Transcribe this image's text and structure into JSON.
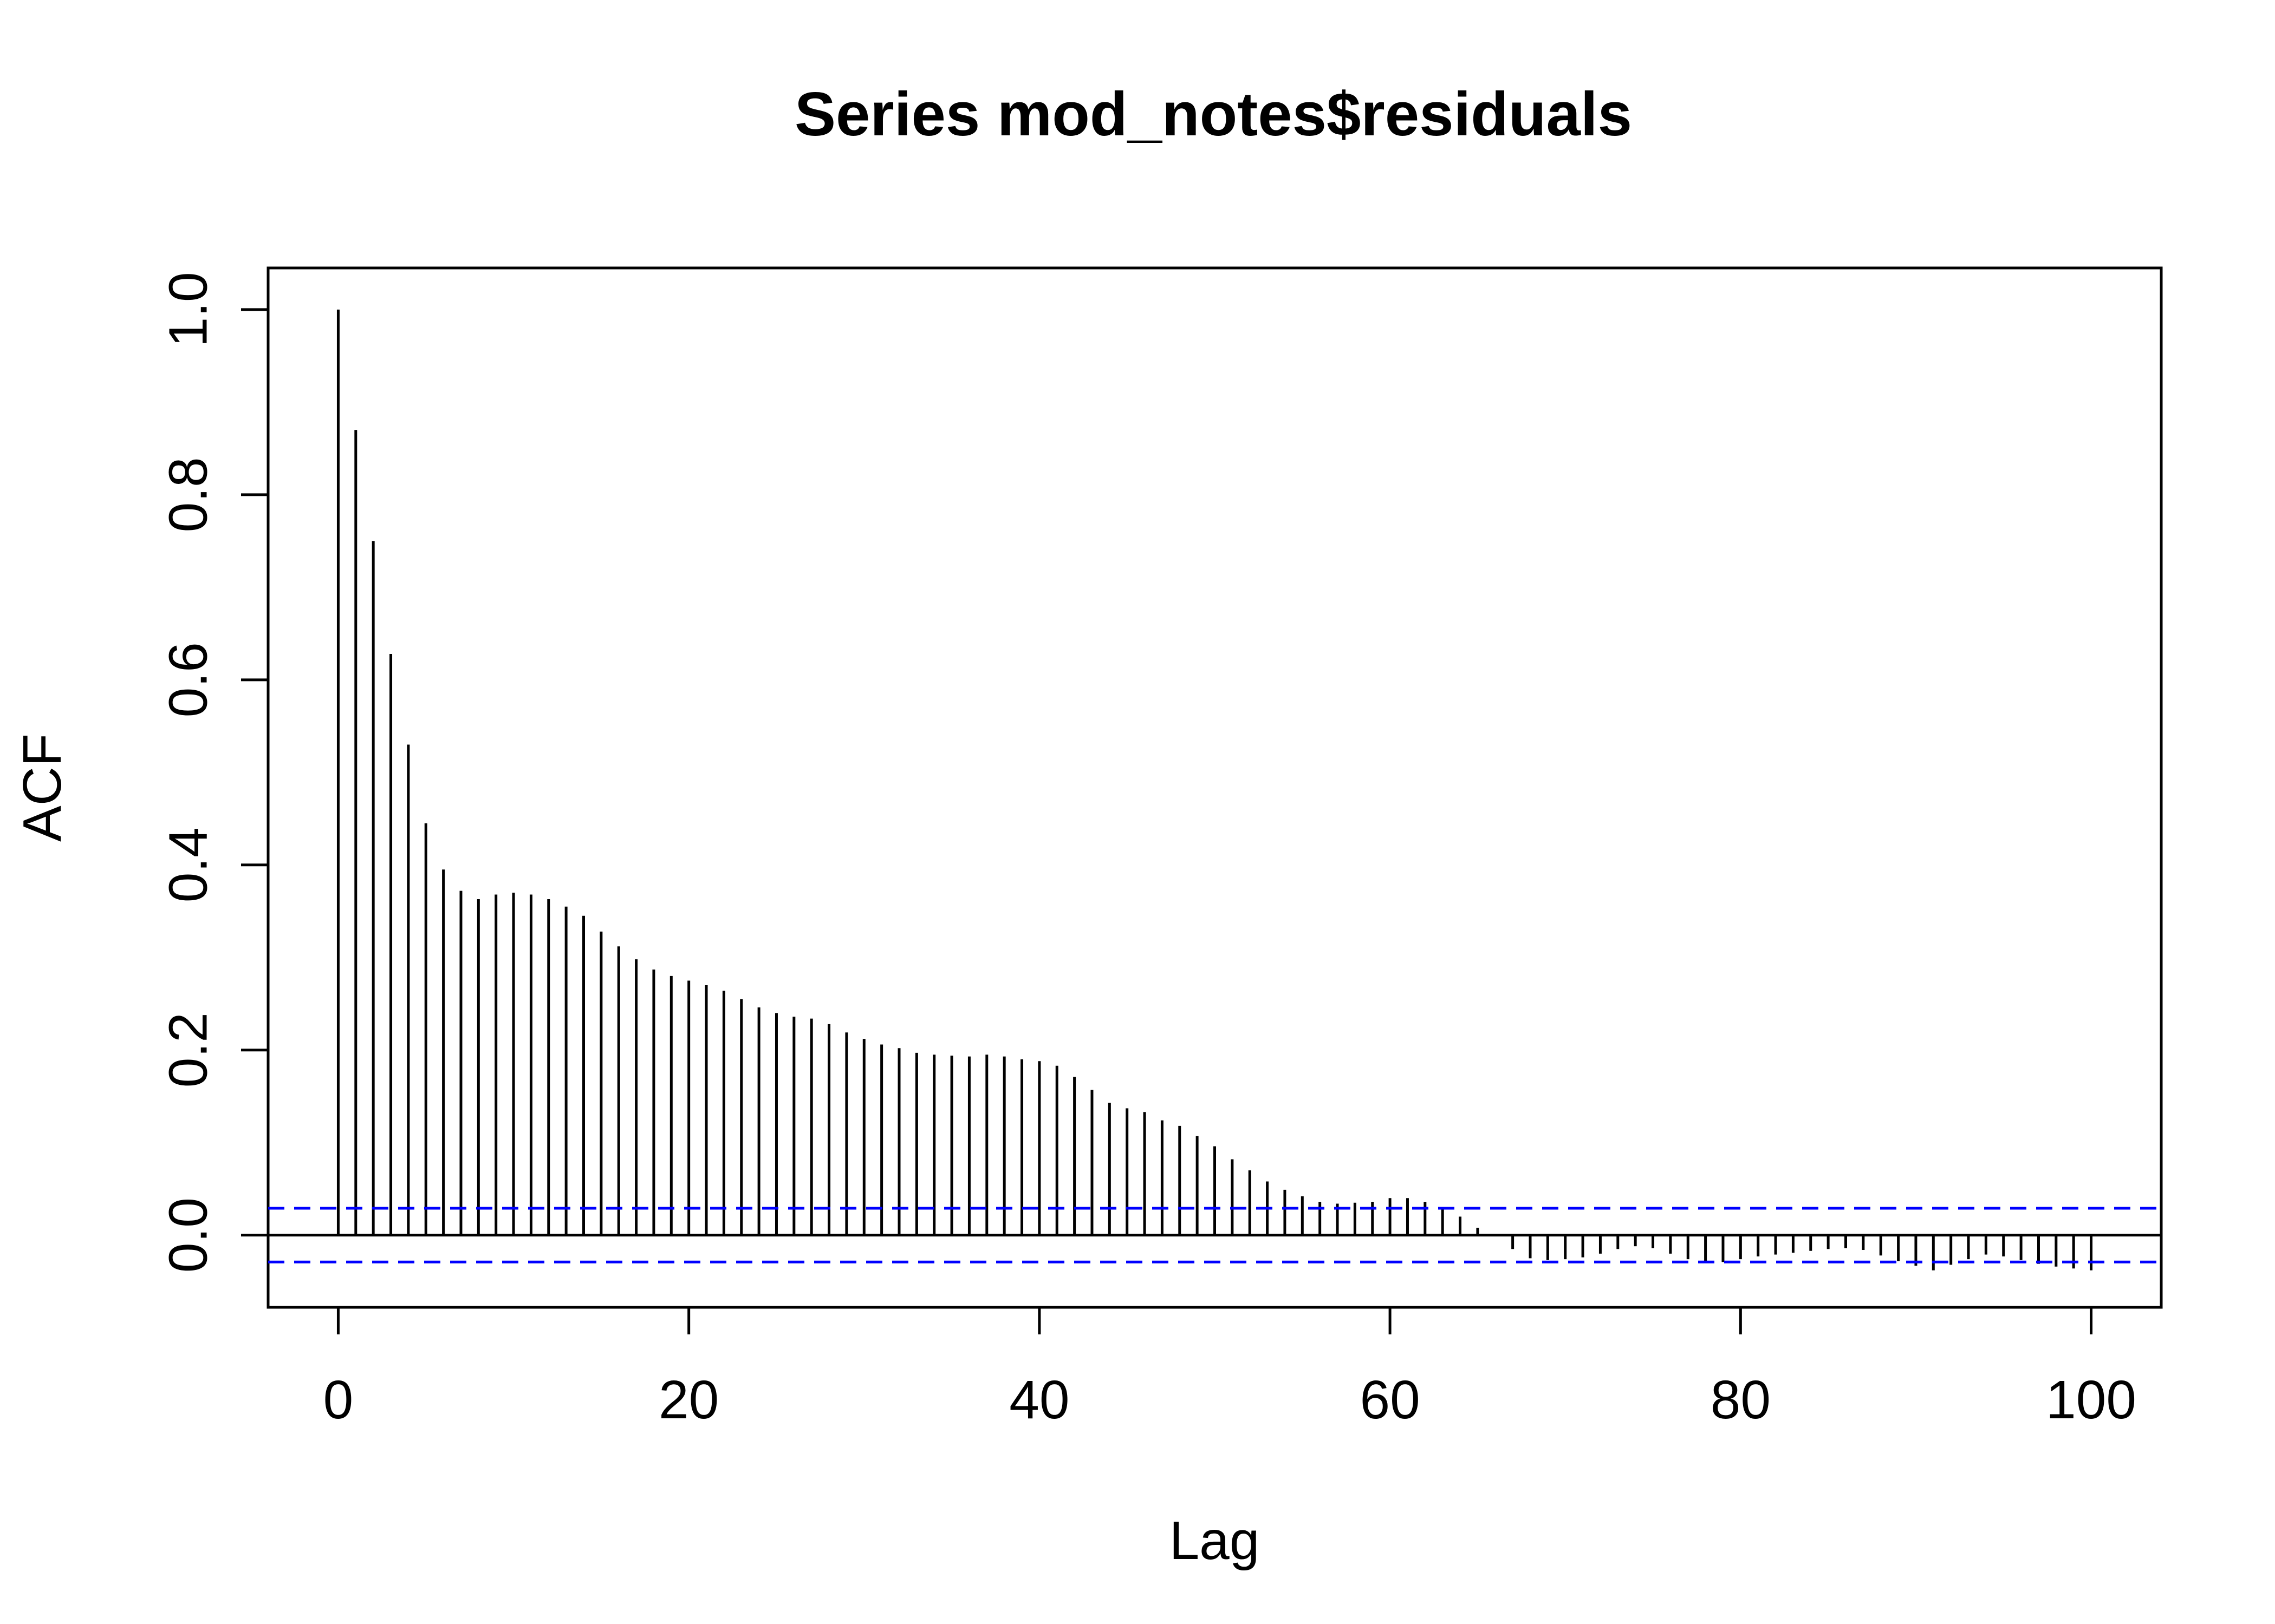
{
  "chart_data": {
    "type": "bar",
    "title": "Series  mod_notes$residuals",
    "xlabel": "Lag",
    "ylabel": "ACF",
    "xlim": [
      -4,
      104
    ],
    "ylim": [
      -0.078,
      1.045
    ],
    "x_ticks": [
      0,
      20,
      40,
      60,
      80,
      100
    ],
    "x_tick_labels": [
      "0",
      "20",
      "40",
      "60",
      "80",
      "100"
    ],
    "y_ticks": [
      0.0,
      0.2,
      0.4,
      0.6,
      0.8,
      1.0
    ],
    "y_tick_labels": [
      "0.0",
      "0.2",
      "0.4",
      "0.6",
      "0.8",
      "1.0"
    ],
    "confidence_limit": 0.029,
    "confidence_color": "#0000ff",
    "bar_color": "#000000",
    "grid": false,
    "x": [
      0,
      1,
      2,
      3,
      4,
      5,
      6,
      7,
      8,
      9,
      10,
      11,
      12,
      13,
      14,
      15,
      16,
      17,
      18,
      19,
      20,
      21,
      22,
      23,
      24,
      25,
      26,
      27,
      28,
      29,
      30,
      31,
      32,
      33,
      34,
      35,
      36,
      37,
      38,
      39,
      40,
      41,
      42,
      43,
      44,
      45,
      46,
      47,
      48,
      49,
      50,
      51,
      52,
      53,
      54,
      55,
      56,
      57,
      58,
      59,
      60,
      61,
      62,
      63,
      64,
      65,
      66,
      67,
      68,
      69,
      70,
      71,
      72,
      73,
      74,
      75,
      76,
      77,
      78,
      79,
      80,
      81,
      82,
      83,
      84,
      85,
      86,
      87,
      88,
      89,
      90,
      91,
      92,
      93,
      94,
      95,
      96,
      97,
      98,
      99,
      100
    ],
    "values": [
      1.0,
      0.87,
      0.75,
      0.628,
      0.53,
      0.445,
      0.395,
      0.372,
      0.363,
      0.368,
      0.37,
      0.368,
      0.363,
      0.355,
      0.345,
      0.328,
      0.312,
      0.298,
      0.287,
      0.28,
      0.275,
      0.27,
      0.264,
      0.255,
      0.246,
      0.24,
      0.236,
      0.234,
      0.228,
      0.219,
      0.212,
      0.206,
      0.202,
      0.197,
      0.195,
      0.194,
      0.193,
      0.195,
      0.193,
      0.19,
      0.188,
      0.183,
      0.171,
      0.157,
      0.143,
      0.137,
      0.133,
      0.124,
      0.118,
      0.107,
      0.096,
      0.082,
      0.07,
      0.058,
      0.049,
      0.042,
      0.036,
      0.034,
      0.035,
      0.036,
      0.04,
      0.04,
      0.036,
      0.028,
      0.02,
      0.008,
      0.0,
      -0.015,
      -0.025,
      -0.027,
      -0.026,
      -0.024,
      -0.02,
      -0.015,
      -0.012,
      -0.014,
      -0.02,
      -0.026,
      -0.028,
      -0.029,
      -0.026,
      -0.023,
      -0.021,
      -0.019,
      -0.017,
      -0.015,
      -0.014,
      -0.016,
      -0.022,
      -0.028,
      -0.033,
      -0.038,
      -0.032,
      -0.026,
      -0.021,
      -0.023,
      -0.027,
      -0.031,
      -0.034,
      -0.036,
      -0.038
    ]
  }
}
